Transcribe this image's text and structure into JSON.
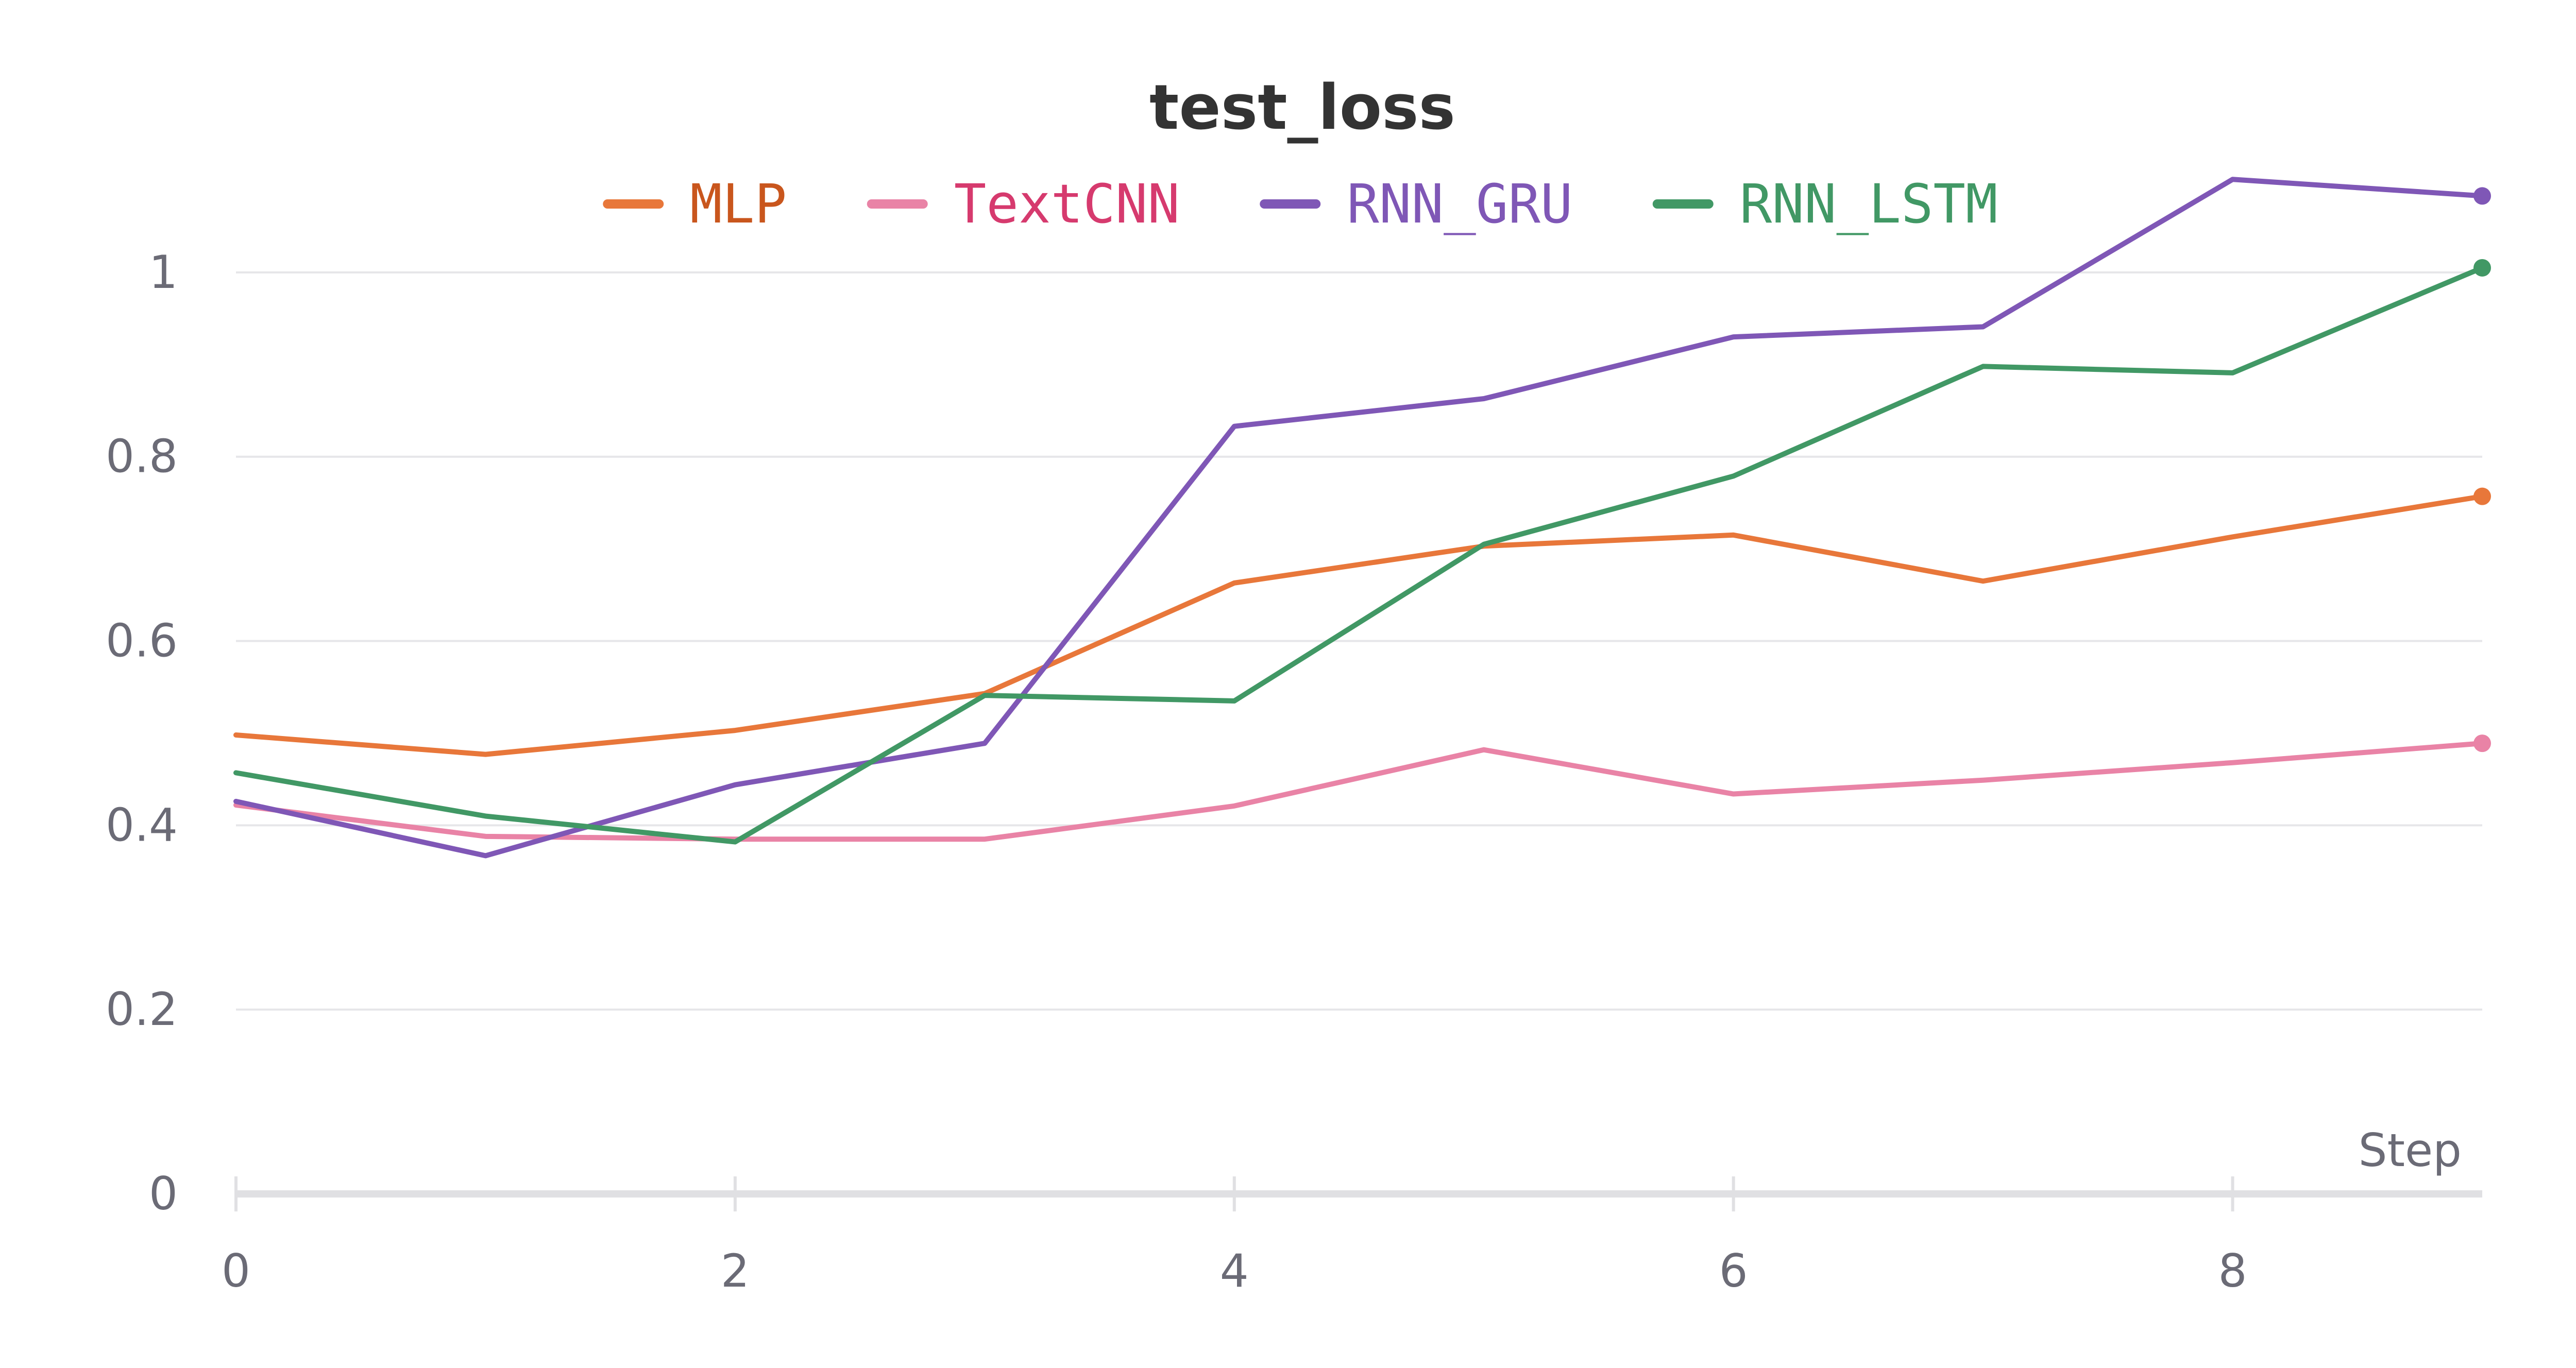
{
  "chart_data": {
    "type": "line",
    "title": "test_loss",
    "xlabel": "Step",
    "ylabel": "",
    "xlim": [
      0,
      9
    ],
    "ylim": [
      0,
      1.1
    ],
    "x_ticks": [
      "0",
      "2",
      "4",
      "6",
      "8"
    ],
    "y_ticks": [
      "0",
      "0.2",
      "0.4",
      "0.6",
      "0.8",
      "1"
    ],
    "grid": true,
    "legend_position": "top-center",
    "x": [
      0,
      1,
      2,
      3,
      4,
      5,
      6,
      7,
      8,
      9
    ],
    "series": [
      {
        "name": "MLP",
        "color": "#e8773a",
        "text_color": "#c9561d",
        "values": [
          0.498,
          0.477,
          0.503,
          0.543,
          0.663,
          0.703,
          0.715,
          0.665,
          0.713,
          0.757
        ]
      },
      {
        "name": "TextCNN",
        "color": "#e983a6",
        "text_color": "#d63a6e",
        "values": [
          0.422,
          0.388,
          0.385,
          0.385,
          0.421,
          0.482,
          0.434,
          0.449,
          0.468,
          0.489
        ]
      },
      {
        "name": "RNN_GRU",
        "color": "#7f57b6",
        "text_color": "#7f57b6",
        "values": [
          0.426,
          0.367,
          0.444,
          0.489,
          0.833,
          0.863,
          0.93,
          0.941,
          1.101,
          1.083
        ]
      },
      {
        "name": "RNN_LSTM",
        "color": "#419865",
        "text_color": "#419865",
        "values": [
          0.457,
          0.41,
          0.382,
          0.541,
          0.535,
          0.705,
          0.779,
          0.898,
          0.891,
          1.005
        ]
      }
    ]
  }
}
